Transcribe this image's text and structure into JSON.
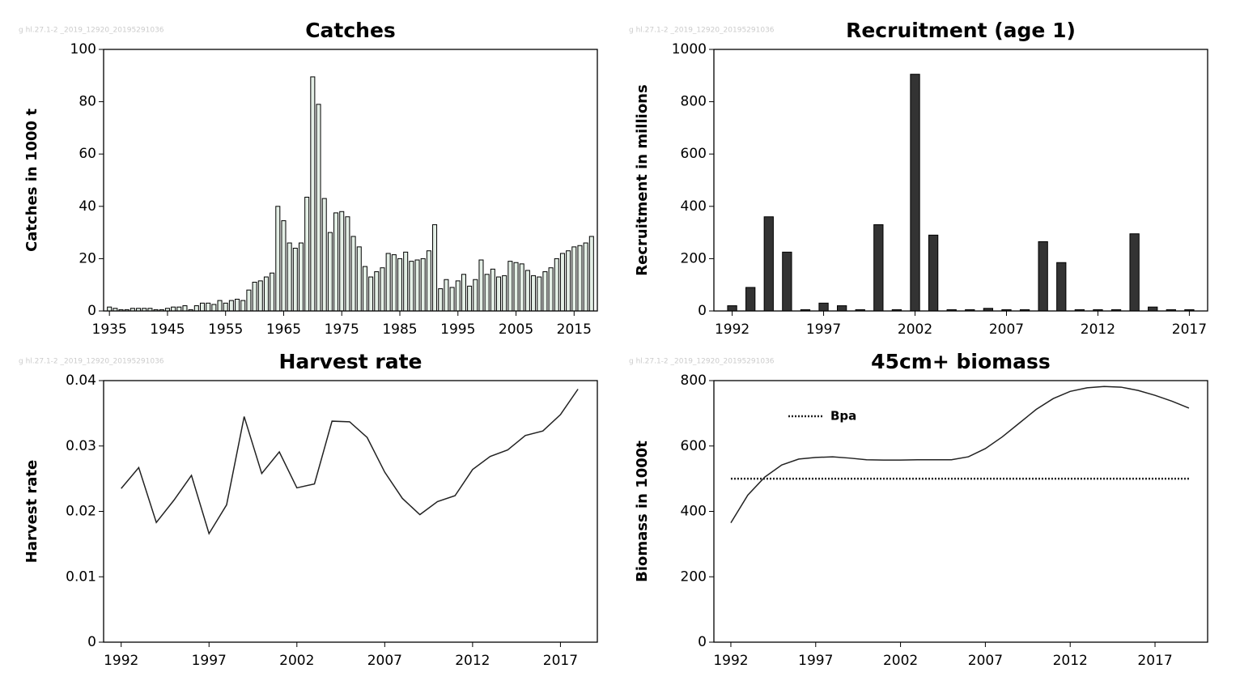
{
  "chart_data": [
    {
      "type": "bar",
      "title": "Catches",
      "ylabel": "Catches in 1000 t",
      "watermark": "g hl.27.1-2 _2019_12920_20195291036",
      "color": "#e4efe6",
      "x": [
        1935,
        1936,
        1937,
        1938,
        1939,
        1940,
        1941,
        1942,
        1943,
        1944,
        1945,
        1946,
        1947,
        1948,
        1949,
        1950,
        1951,
        1952,
        1953,
        1954,
        1955,
        1956,
        1957,
        1958,
        1959,
        1960,
        1961,
        1962,
        1963,
        1964,
        1965,
        1966,
        1967,
        1968,
        1969,
        1970,
        1971,
        1972,
        1973,
        1974,
        1975,
        1976,
        1977,
        1978,
        1979,
        1980,
        1981,
        1982,
        1983,
        1984,
        1985,
        1986,
        1987,
        1988,
        1989,
        1990,
        1991,
        1992,
        1993,
        1994,
        1995,
        1996,
        1997,
        1998,
        1999,
        2000,
        2001,
        2002,
        2003,
        2004,
        2005,
        2006,
        2007,
        2008,
        2009,
        2010,
        2011,
        2012,
        2013,
        2014,
        2015,
        2016,
        2017,
        2018
      ],
      "values": [
        1.5,
        1,
        0.5,
        0.5,
        1,
        1,
        1,
        1,
        0.5,
        0.5,
        1,
        1.5,
        1.5,
        2,
        0.5,
        2,
        3,
        3,
        2.5,
        4,
        3,
        4,
        4.5,
        4,
        8,
        11,
        11.5,
        13,
        14.5,
        40,
        34.5,
        26,
        24,
        26,
        43.5,
        89.5,
        79,
        43,
        30,
        37.5,
        38,
        36,
        28.5,
        24.5,
        17,
        13,
        15,
        16.5,
        22,
        21.5,
        20,
        22.5,
        19,
        19.5,
        20,
        23,
        33,
        8.5,
        12,
        9,
        11.5,
        14,
        9.5,
        12,
        19.5,
        14,
        16,
        13,
        13.5,
        19,
        18.5,
        18,
        15.5,
        13.5,
        13,
        15,
        16.5,
        20,
        22,
        23,
        24.5,
        25,
        26,
        28.5
      ],
      "xlim": [
        1934,
        2019
      ],
      "xticks": [
        1935,
        1945,
        1955,
        1965,
        1975,
        1985,
        1995,
        2005,
        2015
      ],
      "ylim": [
        0,
        100
      ],
      "yticks": [
        0,
        20,
        40,
        60,
        80,
        100
      ]
    },
    {
      "type": "bar",
      "title": "Recruitment (age 1)",
      "ylabel": "Recruitment in millions",
      "watermark": "g hl.27.1-2 _2019_12920_20195291036",
      "color": "#333333",
      "x": [
        1992,
        1993,
        1994,
        1995,
        1996,
        1997,
        1998,
        1999,
        2000,
        2001,
        2002,
        2003,
        2004,
        2005,
        2006,
        2007,
        2008,
        2009,
        2010,
        2011,
        2012,
        2013,
        2014,
        2015,
        2016,
        2017
      ],
      "values": [
        20,
        90,
        360,
        225,
        5,
        30,
        20,
        5,
        330,
        5,
        905,
        290,
        5,
        5,
        10,
        5,
        5,
        265,
        185,
        5,
        5,
        5,
        295,
        15,
        5,
        5
      ],
      "xlim": [
        1991,
        2018
      ],
      "xticks": [
        1992,
        1997,
        2002,
        2007,
        2012,
        2017
      ],
      "ylim": [
        0,
        1000
      ],
      "yticks": [
        0,
        200,
        400,
        600,
        800,
        1000
      ]
    },
    {
      "type": "line",
      "title": "Harvest rate",
      "ylabel": "Harvest rate",
      "watermark": "g hl.27.1-2 _2019_12920_20195291036",
      "color": "#222222",
      "x": [
        1992,
        1993,
        1994,
        1995,
        1996,
        1997,
        1998,
        1999,
        2000,
        2001,
        2002,
        2003,
        2004,
        2005,
        2006,
        2007,
        2008,
        2009,
        2010,
        2011,
        2012,
        2013,
        2014,
        2015,
        2016,
        2017,
        2018
      ],
      "values": [
        0.0235,
        0.0267,
        0.0183,
        0.0217,
        0.0255,
        0.0166,
        0.021,
        0.0345,
        0.0258,
        0.0291,
        0.0236,
        0.0242,
        0.0338,
        0.0337,
        0.0313,
        0.026,
        0.022,
        0.0195,
        0.0215,
        0.0224,
        0.0264,
        0.0284,
        0.0294,
        0.0316,
        0.0323,
        0.0348,
        0.0387
      ],
      "xlim": [
        1991,
        2019.1
      ],
      "xticks": [
        1992,
        1997,
        2002,
        2007,
        2012,
        2017
      ],
      "ylim": [
        0,
        0.04
      ],
      "yticks": [
        0,
        0.01,
        0.02,
        0.03,
        0.04
      ]
    },
    {
      "type": "line",
      "title": "45cm+ biomass",
      "ylabel": "Biomass in 1000t",
      "watermark": "g hl.27.1-2 _2019_12920_20195291036",
      "color": "#222222",
      "x": [
        1992,
        1993,
        1994,
        1995,
        1996,
        1997,
        1998,
        1999,
        2000,
        2001,
        2002,
        2003,
        2004,
        2005,
        2006,
        2007,
        2008,
        2009,
        2010,
        2011,
        2012,
        2013,
        2014,
        2015,
        2016,
        2017,
        2018,
        2019
      ],
      "values": [
        365,
        450,
        505,
        542,
        560,
        565,
        567,
        563,
        558,
        557,
        557,
        558,
        558,
        558,
        567,
        592,
        628,
        670,
        712,
        745,
        767,
        778,
        782,
        780,
        770,
        755,
        737,
        716
      ],
      "reference_lines": [
        {
          "name": "Bpa",
          "value": 500
        }
      ],
      "xlim": [
        1991,
        2020.1
      ],
      "xticks": [
        1992,
        1997,
        2002,
        2007,
        2012,
        2017
      ],
      "ylim": [
        0,
        800
      ],
      "yticks": [
        0,
        200,
        400,
        600,
        800
      ]
    }
  ]
}
